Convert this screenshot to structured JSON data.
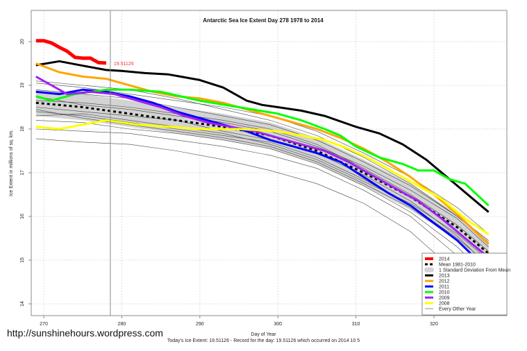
{
  "chart_data": {
    "type": "line",
    "title": "Antarctic Sea Ice Extent Day 278 1978 to 2014",
    "xlabel": "Day of Year",
    "ylabel": "Ice Extent in millions of sq. km.",
    "xlim": [
      267.5,
      328.6
    ],
    "ylim": [
      13.7,
      20.7
    ],
    "xticks": [
      270,
      280,
      290,
      300,
      310,
      320
    ],
    "yticks": [
      14,
      15,
      16,
      17,
      18,
      19,
      20
    ],
    "grid": true,
    "legend_placement": "bottom-right",
    "current_day": 278,
    "annotation": "19.51126",
    "series": [
      {
        "name": "2014",
        "color": "#ff0000",
        "width": 5,
        "x": [
          269,
          270,
          271,
          272,
          273,
          274,
          275,
          276,
          277,
          278
        ],
        "y": [
          20.02,
          20.02,
          19.97,
          19.87,
          19.78,
          19.64,
          19.62,
          19.62,
          19.52,
          19.51
        ]
      },
      {
        "name": "2013",
        "color": "#000000",
        "width": 3,
        "x": [
          269,
          272,
          275,
          278,
          280,
          283,
          286,
          290,
          293,
          296,
          298,
          300,
          303,
          306,
          310,
          313,
          316,
          319,
          322,
          325,
          327
        ],
        "y": [
          19.46,
          19.55,
          19.45,
          19.35,
          19.33,
          19.28,
          19.25,
          19.12,
          18.95,
          18.65,
          18.55,
          18.5,
          18.42,
          18.3,
          18.05,
          17.9,
          17.65,
          17.3,
          16.85,
          16.4,
          16.1
        ]
      },
      {
        "name": "2012",
        "color": "#ffa500",
        "width": 3,
        "x": [
          269,
          272,
          275,
          278,
          281,
          284,
          287,
          290,
          293,
          296,
          299,
          302,
          305,
          308,
          311,
          314,
          317,
          320,
          323,
          325,
          327
        ],
        "y": [
          19.5,
          19.3,
          19.2,
          19.15,
          19.0,
          18.85,
          18.75,
          18.7,
          18.6,
          18.45,
          18.3,
          18.15,
          18.0,
          17.8,
          17.55,
          17.25,
          16.9,
          16.5,
          16.05,
          15.7,
          15.37
        ]
      },
      {
        "name": "2011",
        "color": "#0000ff",
        "width": 3,
        "x": [
          269,
          272,
          275,
          278,
          281,
          284,
          287,
          290,
          293,
          296,
          299,
          302,
          305,
          308,
          311,
          314,
          317,
          320,
          323,
          325,
          327
        ],
        "y": [
          18.85,
          18.8,
          18.9,
          18.85,
          18.75,
          18.6,
          18.4,
          18.25,
          18.1,
          17.95,
          17.75,
          17.6,
          17.45,
          17.25,
          16.9,
          16.55,
          16.25,
          15.85,
          15.45,
          15.1,
          14.81
        ]
      },
      {
        "name": "2010",
        "color": "#00ff00",
        "width": 3,
        "x": [
          269,
          271,
          274,
          278,
          281,
          285,
          290,
          295,
          300,
          303,
          306,
          308,
          310,
          313,
          316,
          318,
          320,
          322,
          324,
          327
        ],
        "y": [
          18.75,
          18.65,
          18.8,
          18.9,
          18.9,
          18.85,
          18.65,
          18.5,
          18.35,
          18.2,
          18.0,
          17.85,
          17.6,
          17.35,
          17.2,
          17.05,
          17.05,
          16.85,
          16.75,
          16.25
        ]
      },
      {
        "name": "2009",
        "color": "#a020f0",
        "width": 3,
        "x": [
          269,
          271,
          273,
          276,
          279,
          282,
          285,
          288,
          291,
          294,
          297,
          300,
          303,
          306,
          309,
          312,
          315,
          318,
          321,
          324,
          327
        ],
        "y": [
          19.2,
          19.0,
          18.8,
          18.85,
          18.8,
          18.65,
          18.5,
          18.3,
          18.15,
          18.05,
          17.95,
          17.8,
          17.65,
          17.5,
          17.25,
          16.95,
          16.65,
          16.35,
          15.95,
          15.5,
          15.06
        ]
      },
      {
        "name": "2008",
        "color": "#ffff00",
        "width": 3,
        "x": [
          269,
          272,
          275,
          278,
          282,
          286,
          290,
          295,
          300,
          303,
          306,
          309,
          312,
          315,
          318,
          321,
          324,
          327
        ],
        "y": [
          18.05,
          18.0,
          18.1,
          18.2,
          18.1,
          18.05,
          18.0,
          18.0,
          17.95,
          17.85,
          17.75,
          17.55,
          17.3,
          17.0,
          16.7,
          16.4,
          15.95,
          15.59
        ]
      }
    ],
    "mean": {
      "name": "Mean 1981-2010",
      "x": [
        269,
        275,
        281,
        287,
        293,
        299,
        305,
        311,
        317,
        323,
        327
      ],
      "y": [
        18.6,
        18.5,
        18.35,
        18.2,
        18.05,
        17.85,
        17.5,
        17.0,
        16.45,
        15.75,
        15.15
      ]
    },
    "std_band": {
      "name": "1 Standard Deviation From Mean",
      "halfwidth": 0.3
    },
    "other_years": {
      "name": "Every Other Year",
      "x": [
        269,
        275,
        281,
        287,
        293,
        299,
        305,
        311,
        317,
        323,
        327
      ],
      "lines": [
        [
          17.78,
          17.7,
          17.65,
          17.5,
          17.3,
          17.05,
          16.75,
          16.3,
          15.65,
          14.7,
          13.95
        ],
        [
          19.05,
          18.95,
          18.8,
          18.65,
          18.5,
          18.3,
          17.95,
          17.45,
          16.9,
          16.2,
          15.6
        ],
        [
          18.9,
          18.8,
          18.7,
          18.5,
          18.3,
          18.1,
          17.75,
          17.25,
          16.7,
          16.0,
          15.4
        ],
        [
          18.4,
          18.3,
          18.15,
          18.0,
          17.85,
          17.7,
          17.35,
          16.85,
          16.25,
          15.5,
          14.9
        ],
        [
          18.2,
          18.15,
          18.0,
          17.9,
          17.75,
          17.55,
          17.2,
          16.7,
          16.1,
          15.3,
          14.6
        ],
        [
          18.75,
          18.55,
          18.45,
          18.3,
          18.15,
          17.95,
          17.6,
          17.15,
          16.6,
          15.95,
          15.3
        ],
        [
          18.3,
          18.35,
          18.2,
          18.05,
          17.9,
          17.65,
          17.3,
          16.8,
          16.3,
          15.6,
          15.0
        ],
        [
          19.1,
          19.0,
          18.9,
          18.7,
          18.45,
          18.2,
          17.85,
          17.35,
          16.75,
          16.0,
          15.45
        ],
        [
          18.5,
          18.4,
          18.3,
          18.2,
          17.95,
          17.75,
          17.45,
          16.95,
          16.35,
          15.55,
          14.85
        ],
        [
          18.0,
          17.95,
          17.9,
          17.75,
          17.6,
          17.4,
          17.1,
          16.6,
          16.0,
          15.1,
          14.3
        ],
        [
          18.65,
          18.6,
          18.5,
          18.35,
          18.2,
          18.0,
          17.65,
          17.1,
          16.5,
          15.8,
          15.2
        ],
        [
          18.45,
          18.25,
          18.1,
          17.95,
          17.8,
          17.6,
          17.25,
          16.75,
          16.2,
          15.45,
          14.75
        ]
      ]
    }
  },
  "watermark": "http://sunshinehours.wordpress.com",
  "footer": "Today's Ice Extent: 19.51126  - Record for the day: 19.51126 which occurred on 2014 10 5"
}
